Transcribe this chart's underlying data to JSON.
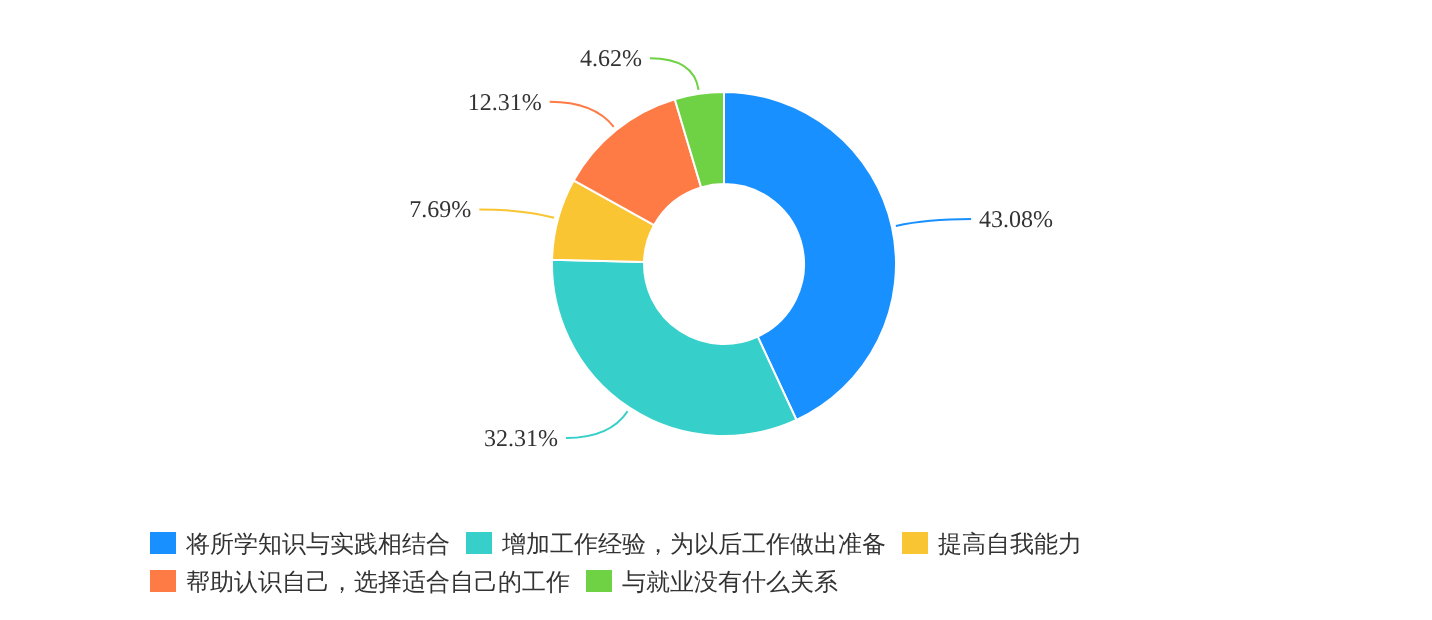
{
  "chart_data": {
    "type": "donut",
    "categories": [
      "将所学知识与实践相结合",
      "增加工作经验，为以后工作做出准备",
      "提高自我能力",
      "帮助认识自己，选择适合自己的工作",
      "与就业没有什么关系"
    ],
    "values": [
      43.08,
      32.31,
      7.69,
      12.31,
      4.62
    ],
    "value_labels": [
      "43.08%",
      "32.31%",
      "7.69%",
      "12.31%",
      "4.62%"
    ],
    "colors": [
      "#1890ff",
      "#36cfc9",
      "#fac532",
      "#ff7b45",
      "#6fd144"
    ],
    "legend": "bottom"
  }
}
